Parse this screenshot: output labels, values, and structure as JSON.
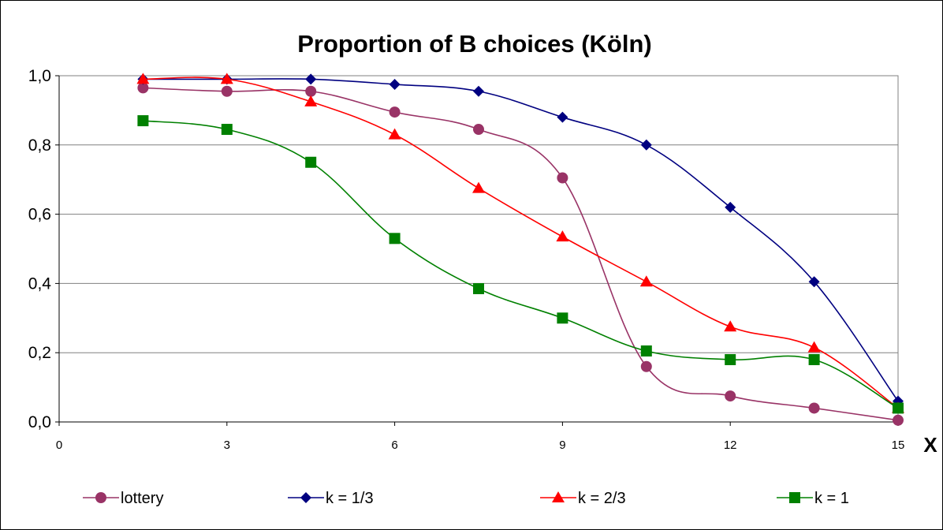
{
  "chart_data": {
    "type": "line",
    "title": "Proportion of B choices (Köln)",
    "xlabel": "X",
    "ylabel": "",
    "xlim": [
      0,
      15
    ],
    "ylim": [
      0,
      1
    ],
    "x_ticks": [
      "0",
      "3",
      "6",
      "9",
      "12",
      "15"
    ],
    "y_ticks": [
      "0,0",
      "0,2",
      "0,4",
      "0,6",
      "0,8",
      "1,0"
    ],
    "grid": "horizontal",
    "legend_position": "bottom",
    "x": [
      1.5,
      3,
      4.5,
      6,
      7.5,
      9,
      10.5,
      12,
      13.5,
      15
    ],
    "series": [
      {
        "name": "lottery",
        "color": "#993366",
        "marker": "circle",
        "values": [
          0.965,
          0.955,
          0.955,
          0.895,
          0.845,
          0.705,
          0.16,
          0.075,
          0.04,
          0.005
        ]
      },
      {
        "name": "k = 1/3",
        "color": "#000080",
        "marker": "diamond",
        "values": [
          0.99,
          0.99,
          0.99,
          0.975,
          0.955,
          0.88,
          0.8,
          0.62,
          0.405,
          0.06
        ]
      },
      {
        "name": "k = 2/3",
        "color": "#ff0000",
        "marker": "triangle",
        "values": [
          0.99,
          0.99,
          0.925,
          0.83,
          0.675,
          0.535,
          0.405,
          0.275,
          0.215,
          0.04
        ]
      },
      {
        "name": "k = 1",
        "color": "#008000",
        "marker": "square",
        "values": [
          0.87,
          0.845,
          0.75,
          0.53,
          0.385,
          0.3,
          0.205,
          0.18,
          0.18,
          0.04
        ]
      }
    ]
  }
}
